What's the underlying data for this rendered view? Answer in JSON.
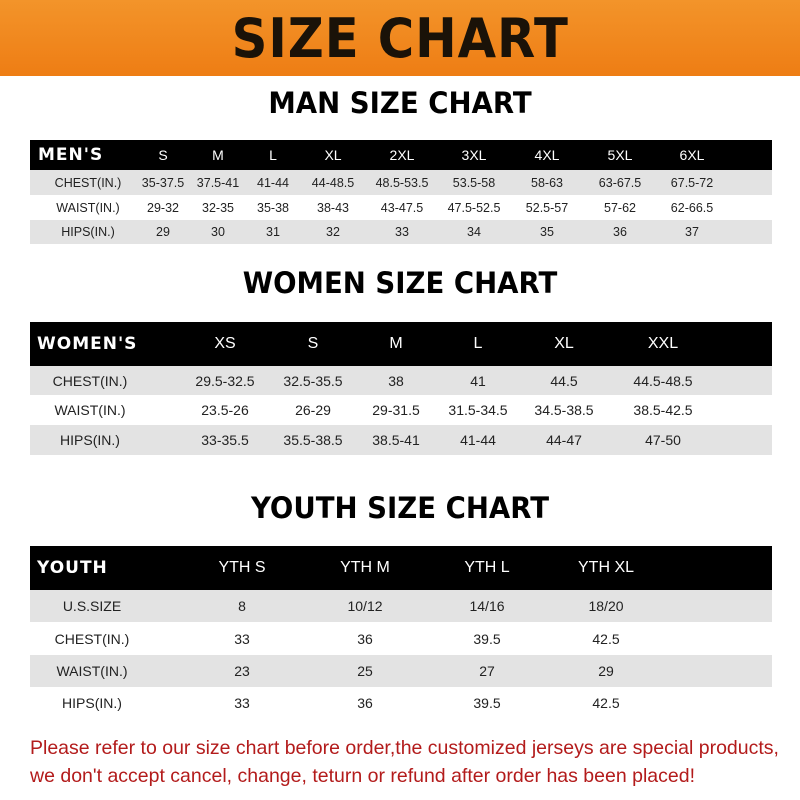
{
  "banner": "SIZE CHART",
  "men": {
    "title": "MAN SIZE CHART",
    "header": [
      "MEN'S",
      "S",
      "M",
      "L",
      "XL",
      "2XL",
      "3XL",
      "4XL",
      "5XL",
      "6XL"
    ],
    "rows": [
      [
        "CHEST(IN.)",
        "35-37.5",
        "37.5-41",
        "41-44",
        "44-48.5",
        "48.5-53.5",
        "53.5-58",
        "58-63",
        "63-67.5",
        "67.5-72"
      ],
      [
        "WAIST(IN.)",
        "29-32",
        "32-35",
        "35-38",
        "38-43",
        "43-47.5",
        "47.5-52.5",
        "52.5-57",
        "57-62",
        "62-66.5"
      ],
      [
        "HIPS(IN.)",
        "29",
        "30",
        "31",
        "32",
        "33",
        "34",
        "35",
        "36",
        "37"
      ]
    ]
  },
  "women": {
    "title": "WOMEN SIZE CHART",
    "header": [
      "WOMEN'S",
      "XS",
      "S",
      "M",
      "L",
      "XL",
      "XXL"
    ],
    "rows": [
      [
        "CHEST(IN.)",
        "29.5-32.5",
        "32.5-35.5",
        "38",
        "41",
        "44.5",
        "44.5-48.5"
      ],
      [
        "WAIST(IN.)",
        "23.5-26",
        "26-29",
        "29-31.5",
        "31.5-34.5",
        "34.5-38.5",
        "38.5-42.5"
      ],
      [
        "HIPS(IN.)",
        "33-35.5",
        "35.5-38.5",
        "38.5-41",
        "41-44",
        "44-47",
        "47-50"
      ]
    ]
  },
  "youth": {
    "title": "YOUTH SIZE CHART",
    "header": [
      "YOUTH",
      "YTH S",
      "YTH M",
      "YTH L",
      "YTH XL"
    ],
    "rows": [
      [
        "U.S.SIZE",
        "8",
        "10/12",
        "14/16",
        "18/20"
      ],
      [
        "CHEST(IN.)",
        "33",
        "36",
        "39.5",
        "42.5"
      ],
      [
        "WAIST(IN.)",
        "23",
        "25",
        "27",
        "29"
      ],
      [
        "HIPS(IN.)",
        "33",
        "36",
        "39.5",
        "42.5"
      ]
    ]
  },
  "note": "Please refer to our size chart before order,the customized jerseys are special products, we don't accept cancel, change, teturn or refund after order has been placed!",
  "colors": {
    "banner": "#ee7d14",
    "header_row": "#000000",
    "stripe": "#e3e3e3",
    "note": "#b31b1b"
  }
}
